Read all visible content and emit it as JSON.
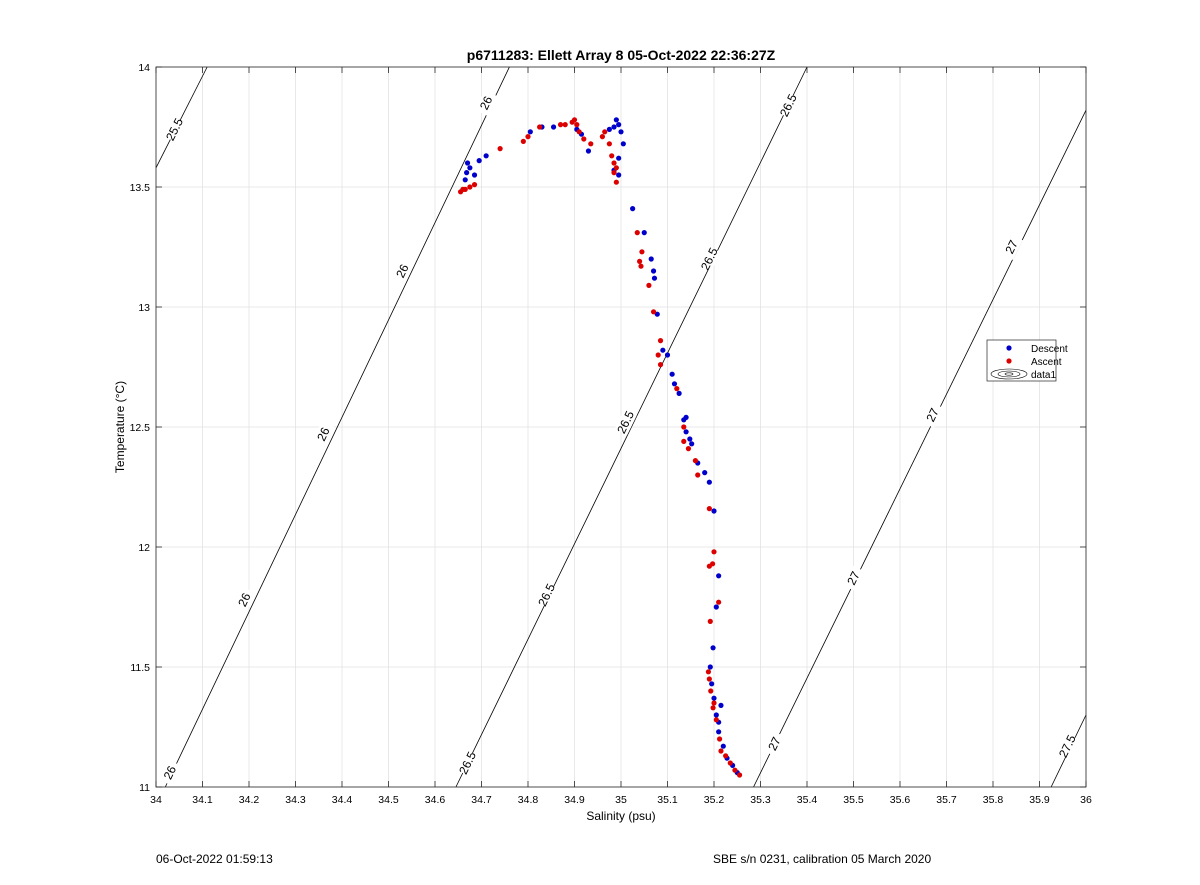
{
  "chart_data": {
    "type": "scatter",
    "title": "p6711283: Ellett Array 8 05-Oct-2022 22:36:27Z",
    "xlabel": "Salinity (psu)",
    "ylabel": "Temperature (°C)",
    "xlim": [
      34,
      36
    ],
    "ylim": [
      11,
      14
    ],
    "x_ticks": [
      "34",
      "34.1",
      "34.2",
      "34.3",
      "34.4",
      "34.5",
      "34.6",
      "34.7",
      "34.8",
      "34.9",
      "35",
      "35.1",
      "35.2",
      "35.3",
      "35.4",
      "35.5",
      "35.6",
      "35.7",
      "35.8",
      "35.9",
      "36"
    ],
    "y_ticks": [
      "11",
      "11.5",
      "12",
      "12.5",
      "13",
      "13.5",
      "14"
    ],
    "grid": true,
    "legend_position": "right",
    "legend": [
      {
        "label": "Descent",
        "color": "#0000cc",
        "marker": "dot"
      },
      {
        "label": "Ascent",
        "color": "#dd0000",
        "marker": "dot"
      },
      {
        "label": "data1",
        "color": "#000000",
        "marker": "contour"
      }
    ],
    "contours": [
      {
        "level": "25.5",
        "points": [
          [
            34.0,
            13.58
          ],
          [
            34.11,
            14.0
          ]
        ],
        "labels": [
          [
            34.04,
            13.74
          ]
        ]
      },
      {
        "level": "26",
        "points": [
          [
            34.02,
            11.0
          ],
          [
            34.76,
            14.0
          ]
        ],
        "labels": [
          [
            34.03,
            11.06
          ],
          [
            34.19,
            11.78
          ],
          [
            34.36,
            12.47
          ],
          [
            34.53,
            13.15
          ],
          [
            34.71,
            13.85
          ]
        ]
      },
      {
        "level": "26.5",
        "points": [
          [
            34.645,
            11.0
          ],
          [
            35.4,
            14.0
          ]
        ],
        "labels": [
          [
            34.67,
            11.1
          ],
          [
            34.84,
            11.8
          ],
          [
            35.01,
            12.52
          ],
          [
            35.19,
            13.2
          ],
          [
            35.36,
            13.84
          ]
        ]
      },
      {
        "level": "27",
        "points": [
          [
            35.285,
            11.0
          ],
          [
            36.0,
            13.82
          ]
        ],
        "labels": [
          [
            35.33,
            11.18
          ],
          [
            35.5,
            11.87
          ],
          [
            35.67,
            12.55
          ],
          [
            35.84,
            13.25
          ]
        ]
      },
      {
        "level": "27.5",
        "points": [
          [
            35.925,
            11.0
          ],
          [
            36.0,
            11.3
          ]
        ],
        "labels": [
          [
            35.96,
            11.17
          ]
        ]
      }
    ],
    "series": [
      {
        "name": "Descent",
        "color": "#0000cc",
        "points": [
          [
            34.665,
            13.53
          ],
          [
            34.668,
            13.56
          ],
          [
            34.67,
            13.6
          ],
          [
            34.675,
            13.58
          ],
          [
            34.685,
            13.55
          ],
          [
            34.695,
            13.61
          ],
          [
            34.71,
            13.63
          ],
          [
            34.805,
            13.73
          ],
          [
            34.83,
            13.75
          ],
          [
            34.855,
            13.75
          ],
          [
            34.905,
            13.74
          ],
          [
            34.915,
            13.72
          ],
          [
            34.93,
            13.65
          ],
          [
            34.975,
            13.74
          ],
          [
            34.985,
            13.75
          ],
          [
            34.99,
            13.78
          ],
          [
            34.995,
            13.76
          ],
          [
            35.0,
            13.73
          ],
          [
            35.005,
            13.68
          ],
          [
            34.995,
            13.62
          ],
          [
            34.985,
            13.57
          ],
          [
            34.995,
            13.55
          ],
          [
            35.025,
            13.41
          ],
          [
            35.05,
            13.31
          ],
          [
            35.065,
            13.2
          ],
          [
            35.07,
            13.15
          ],
          [
            35.072,
            13.12
          ],
          [
            35.078,
            12.97
          ],
          [
            35.09,
            12.82
          ],
          [
            35.1,
            12.8
          ],
          [
            35.11,
            12.72
          ],
          [
            35.115,
            12.68
          ],
          [
            35.125,
            12.64
          ],
          [
            35.135,
            12.53
          ],
          [
            35.14,
            12.54
          ],
          [
            35.14,
            12.48
          ],
          [
            35.148,
            12.45
          ],
          [
            35.152,
            12.43
          ],
          [
            35.165,
            12.35
          ],
          [
            35.18,
            12.31
          ],
          [
            35.19,
            12.27
          ],
          [
            35.2,
            12.15
          ],
          [
            35.21,
            11.88
          ],
          [
            35.205,
            11.75
          ],
          [
            35.198,
            11.58
          ],
          [
            35.192,
            11.5
          ],
          [
            35.195,
            11.43
          ],
          [
            35.2,
            11.37
          ],
          [
            35.205,
            11.3
          ],
          [
            35.21,
            11.27
          ],
          [
            35.215,
            11.34
          ],
          [
            35.21,
            11.23
          ],
          [
            35.22,
            11.17
          ],
          [
            35.228,
            11.12
          ],
          [
            35.24,
            11.09
          ],
          [
            35.25,
            11.06
          ]
        ]
      },
      {
        "name": "Ascent",
        "color": "#dd0000",
        "points": [
          [
            34.655,
            13.48
          ],
          [
            34.66,
            13.49
          ],
          [
            34.665,
            13.49
          ],
          [
            34.675,
            13.5
          ],
          [
            34.685,
            13.51
          ],
          [
            34.74,
            13.66
          ],
          [
            34.79,
            13.69
          ],
          [
            34.8,
            13.71
          ],
          [
            34.825,
            13.75
          ],
          [
            34.87,
            13.76
          ],
          [
            34.88,
            13.76
          ],
          [
            34.895,
            13.77
          ],
          [
            34.9,
            13.78
          ],
          [
            34.905,
            13.76
          ],
          [
            34.91,
            13.73
          ],
          [
            34.92,
            13.7
          ],
          [
            34.935,
            13.68
          ],
          [
            34.96,
            13.71
          ],
          [
            34.965,
            13.73
          ],
          [
            34.975,
            13.68
          ],
          [
            34.98,
            13.63
          ],
          [
            34.985,
            13.6
          ],
          [
            34.99,
            13.58
          ],
          [
            34.985,
            13.56
          ],
          [
            34.99,
            13.52
          ],
          [
            35.035,
            13.31
          ],
          [
            35.045,
            13.23
          ],
          [
            35.04,
            13.19
          ],
          [
            35.043,
            13.17
          ],
          [
            35.06,
            13.09
          ],
          [
            35.07,
            12.98
          ],
          [
            35.085,
            12.86
          ],
          [
            35.08,
            12.8
          ],
          [
            35.085,
            12.76
          ],
          [
            35.12,
            12.66
          ],
          [
            35.135,
            12.5
          ],
          [
            35.135,
            12.44
          ],
          [
            35.145,
            12.41
          ],
          [
            35.16,
            12.36
          ],
          [
            35.165,
            12.3
          ],
          [
            35.19,
            12.16
          ],
          [
            35.2,
            11.98
          ],
          [
            35.197,
            11.93
          ],
          [
            35.19,
            11.92
          ],
          [
            35.21,
            11.77
          ],
          [
            35.192,
            11.69
          ],
          [
            35.188,
            11.48
          ],
          [
            35.19,
            11.45
          ],
          [
            35.193,
            11.4
          ],
          [
            35.2,
            11.35
          ],
          [
            35.198,
            11.33
          ],
          [
            35.205,
            11.28
          ],
          [
            35.212,
            11.2
          ],
          [
            35.215,
            11.15
          ],
          [
            35.225,
            11.13
          ],
          [
            35.235,
            11.1
          ],
          [
            35.245,
            11.07
          ],
          [
            35.255,
            11.05
          ]
        ]
      }
    ]
  },
  "footer": {
    "date": "06-Oct-2022 01:59:13",
    "calibration": "SBE s/n 0231, calibration 05 March 2020"
  }
}
